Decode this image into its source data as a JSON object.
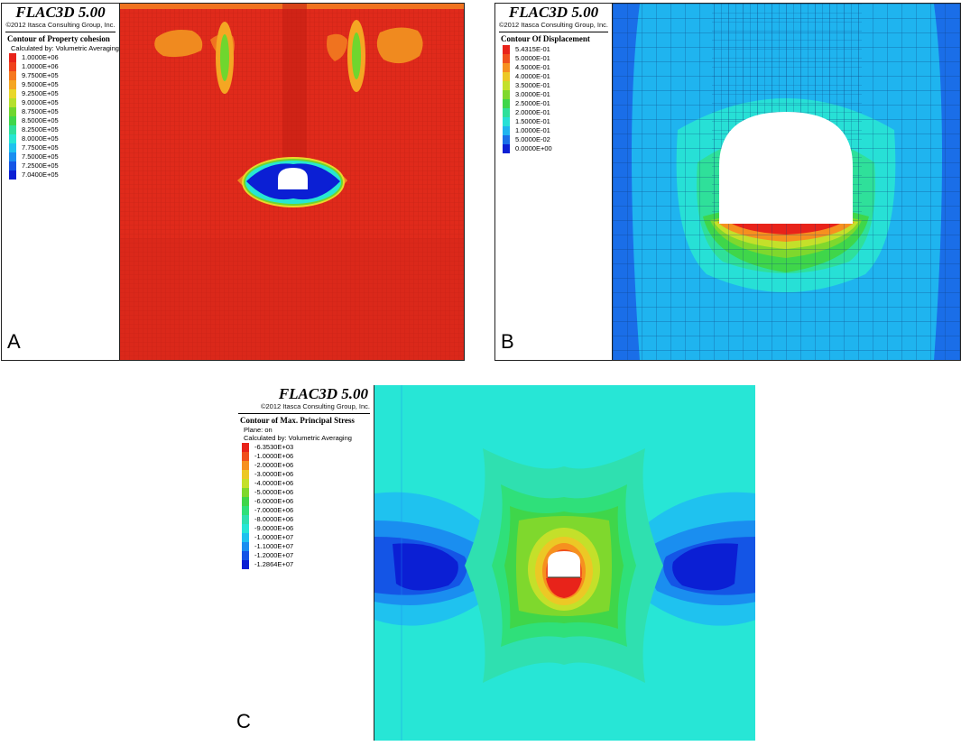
{
  "panels": {
    "A": {
      "letter": "A",
      "title": "FLAC3D 5.00",
      "copyright": "©2012 Itasca Consulting Group, Inc.",
      "caption": "Contour of Property cohesion",
      "lines": [
        "Calculated by: Volumetric Averaging"
      ],
      "legend": [
        {
          "value": "1.0000E+06",
          "color": "#e8231a"
        },
        {
          "value": "1.0000E+06",
          "color": "#f0421c"
        },
        {
          "value": "9.7500E+05",
          "color": "#f6781f"
        },
        {
          "value": "9.5000E+05",
          "color": "#f5a623"
        },
        {
          "value": "9.2500E+05",
          "color": "#e9d72a"
        },
        {
          "value": "9.0000E+05",
          "color": "#b5e02c"
        },
        {
          "value": "8.7500E+05",
          "color": "#6fd62e"
        },
        {
          "value": "8.5000E+05",
          "color": "#3fd64a"
        },
        {
          "value": "8.2500E+05",
          "color": "#2fe09a"
        },
        {
          "value": "8.0000E+05",
          "color": "#27e6d3"
        },
        {
          "value": "7.7500E+05",
          "color": "#1fc2ef"
        },
        {
          "value": "7.5000E+05",
          "color": "#1a8ef0"
        },
        {
          "value": "7.2500E+05",
          "color": "#1455e6"
        },
        {
          "value": "7.0400E+05",
          "color": "#0b1fd4"
        }
      ]
    },
    "B": {
      "letter": "B",
      "title": "FLAC3D 5.00",
      "copyright": "©2012 Itasca Consulting Group, Inc.",
      "caption": "Contour Of Displacement",
      "lines": [],
      "legend": [
        {
          "value": "5.4315E-01",
          "color": "#e8231a"
        },
        {
          "value": "5.0000E-01",
          "color": "#f0501c"
        },
        {
          "value": "4.5000E-01",
          "color": "#f6901f"
        },
        {
          "value": "4.0000E-01",
          "color": "#ecc825"
        },
        {
          "value": "3.5000E-01",
          "color": "#c4e02a"
        },
        {
          "value": "3.0000E-01",
          "color": "#7fd82d"
        },
        {
          "value": "2.5000E-01",
          "color": "#3fd64a"
        },
        {
          "value": "2.0000E-01",
          "color": "#2fe09a"
        },
        {
          "value": "1.5000E-01",
          "color": "#27e0d6"
        },
        {
          "value": "1.0000E-01",
          "color": "#1fb4ef"
        },
        {
          "value": "5.0000E-02",
          "color": "#1a6ee8"
        },
        {
          "value": "0.0000E+00",
          "color": "#0b1fd4"
        }
      ]
    },
    "C": {
      "letter": "C",
      "title": "FLAC3D 5.00",
      "copyright": "©2012 Itasca Consulting Group, Inc.",
      "caption": "Contour of Max. Principal Stress",
      "lines": [
        "Plane: on",
        "Calculated by: Volumetric Averaging"
      ],
      "legend": [
        {
          "value": "-6.3530E+03",
          "color": "#e8231a"
        },
        {
          "value": "-1.0000E+06",
          "color": "#f0501c"
        },
        {
          "value": "-2.0000E+06",
          "color": "#f6901f"
        },
        {
          "value": "-3.0000E+06",
          "color": "#ecc825"
        },
        {
          "value": "-4.0000E+06",
          "color": "#c4e02a"
        },
        {
          "value": "-5.0000E+06",
          "color": "#7fd82d"
        },
        {
          "value": "-6.0000E+06",
          "color": "#3fd64a"
        },
        {
          "value": "-7.0000E+06",
          "color": "#2fe07a"
        },
        {
          "value": "-8.0000E+06",
          "color": "#2fe0b0"
        },
        {
          "value": "-9.0000E+06",
          "color": "#27e6d6"
        },
        {
          "value": "-1.0000E+07",
          "color": "#1fc2ef"
        },
        {
          "value": "-1.1000E+07",
          "color": "#1a8ef0"
        },
        {
          "value": "-1.2000E+07",
          "color": "#1455e6"
        },
        {
          "value": "-1.2864E+07",
          "color": "#0b1fd4"
        }
      ]
    }
  }
}
